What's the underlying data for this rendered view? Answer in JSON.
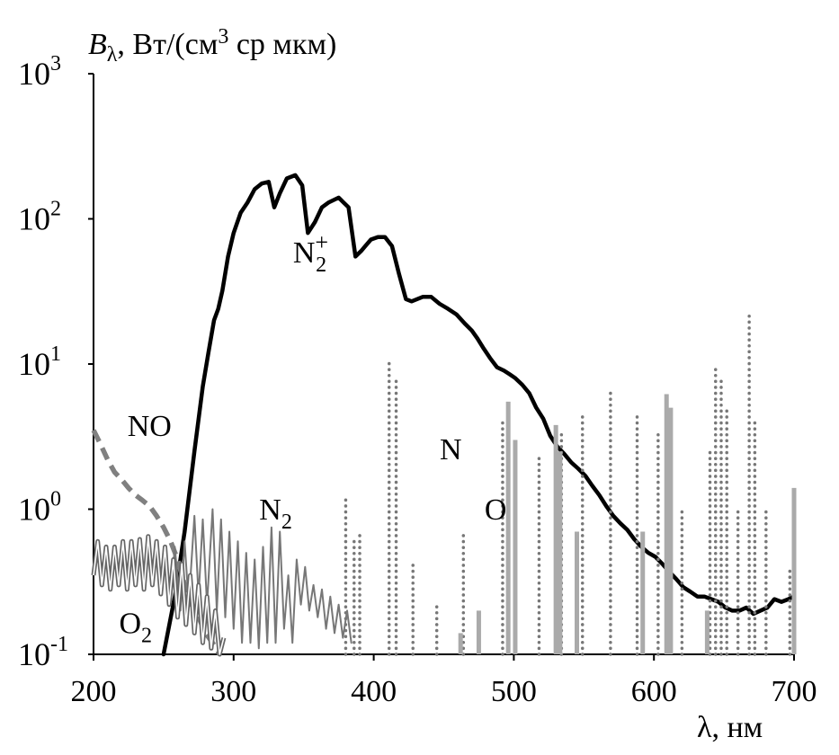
{
  "chart_data": {
    "type": "line",
    "title": "",
    "ylabel": {
      "symbol": "B",
      "subscript": "λ",
      "units_prefix": ", Вт/(см",
      "units_exp": "3",
      "units_suffix": " ср мкм)"
    },
    "xlabel": "λ, нм",
    "xlim": [
      200,
      700
    ],
    "ylim_log10": [
      -1,
      3
    ],
    "yscale": "log",
    "x_ticks": [
      "200",
      "300",
      "400",
      "500",
      "600",
      "700"
    ],
    "y_ticks": [
      {
        "base": "10",
        "exp": "3",
        "log10": 3
      },
      {
        "base": "10",
        "exp": "2",
        "log10": 2
      },
      {
        "base": "10",
        "exp": "1",
        "log10": 1
      },
      {
        "base": "10",
        "exp": "0",
        "log10": 0
      },
      {
        "base": "10",
        "exp": "-1",
        "log10": -1
      }
    ],
    "annotations": [
      {
        "text": "NO",
        "sub": "",
        "sup": "",
        "x": 240,
        "y": 3.2
      },
      {
        "text": "N",
        "sub": "2",
        "sup": "+",
        "x": 355,
        "y": 50
      },
      {
        "text": "N",
        "sub": "2",
        "sup": "",
        "x": 330,
        "y": 0.85
      },
      {
        "text": "N",
        "sub": "",
        "sup": "",
        "x": 455,
        "y": 2.2
      },
      {
        "text": "O",
        "sub": "",
        "sup": "",
        "x": 487,
        "y": 0.85
      },
      {
        "text": "O",
        "sub": "2",
        "sup": "",
        "x": 230,
        "y": 0.14
      }
    ],
    "series": [
      {
        "name": "N2+",
        "style": "solid-thick",
        "color": "#000000",
        "x": [
          250,
          258,
          265,
          272,
          278,
          282,
          286,
          289,
          292,
          296,
          300,
          305,
          310,
          315,
          320,
          325,
          329,
          333,
          338,
          344,
          349,
          353,
          358,
          363,
          368,
          375,
          382,
          387,
          391,
          394,
          398,
          403,
          408,
          413,
          418,
          423,
          427,
          431,
          435,
          441,
          447,
          453,
          459,
          465,
          470,
          474,
          478,
          483,
          488,
          493,
          497,
          501,
          506,
          511,
          516,
          521,
          526,
          531,
          536,
          541,
          546,
          551,
          556,
          561,
          566,
          571,
          576,
          581,
          586,
          591,
          596,
          601,
          606,
          611,
          616,
          621,
          626,
          631,
          636,
          641,
          646,
          651,
          656,
          661,
          666,
          671,
          676,
          681,
          686,
          691,
          696,
          700
        ],
        "y": [
          0.1,
          0.25,
          0.7,
          2.5,
          7,
          12,
          20,
          24,
          32,
          55,
          80,
          110,
          130,
          160,
          175,
          180,
          120,
          150,
          190,
          200,
          170,
          80,
          95,
          120,
          130,
          140,
          120,
          55,
          60,
          65,
          72,
          75,
          75,
          65,
          42,
          28,
          27,
          28,
          29,
          29,
          26,
          24,
          22,
          19,
          17,
          15,
          13,
          11,
          9.5,
          9.0,
          8.5,
          8.0,
          7.2,
          6.3,
          5.0,
          4.2,
          3.2,
          2.7,
          2.4,
          2.1,
          1.9,
          1.7,
          1.45,
          1.25,
          1.05,
          0.9,
          0.8,
          0.72,
          0.62,
          0.55,
          0.5,
          0.47,
          0.42,
          0.37,
          0.33,
          0.29,
          0.27,
          0.25,
          0.25,
          0.24,
          0.23,
          0.21,
          0.2,
          0.2,
          0.21,
          0.19,
          0.2,
          0.21,
          0.24,
          0.23,
          0.24,
          0.25
        ]
      },
      {
        "name": "NO",
        "style": "dashed-thick",
        "color": "#808080",
        "x": [
          200,
          205,
          210,
          215,
          220,
          225,
          230,
          235,
          240,
          245,
          250,
          255,
          260,
          265,
          270,
          275,
          280,
          285,
          290
        ],
        "y": [
          3.5,
          2.8,
          2.2,
          1.8,
          1.6,
          1.4,
          1.25,
          1.15,
          1.05,
          0.9,
          0.75,
          0.6,
          0.45,
          0.3,
          0.22,
          0.18,
          0.14,
          0.12,
          0.1
        ]
      },
      {
        "name": "N2",
        "style": "solid-thin",
        "color": "#777777",
        "x": [
          255,
          258,
          262,
          265,
          268,
          272,
          275,
          278,
          281,
          285,
          288,
          291,
          294,
          297,
          300,
          303,
          306,
          309,
          312,
          315,
          318,
          321,
          324,
          327,
          330,
          333,
          336,
          339,
          342,
          345,
          348,
          351,
          354,
          357,
          360,
          363,
          366,
          369,
          372,
          375,
          378,
          381,
          384
        ],
        "y": [
          0.25,
          0.55,
          0.2,
          0.6,
          0.22,
          0.9,
          0.25,
          0.85,
          0.22,
          1.0,
          0.2,
          0.85,
          0.18,
          0.7,
          0.15,
          0.6,
          0.12,
          0.5,
          0.12,
          0.45,
          0.11,
          0.55,
          0.12,
          0.75,
          0.12,
          0.7,
          0.15,
          0.35,
          0.12,
          0.45,
          0.22,
          0.4,
          0.2,
          0.3,
          0.18,
          0.28,
          0.15,
          0.25,
          0.14,
          0.22,
          0.13,
          0.2,
          0.12
        ]
      },
      {
        "name": "O2",
        "style": "solid-double",
        "color": "#666666",
        "x": [
          200,
          203,
          206,
          209,
          212,
          215,
          218,
          221,
          224,
          227,
          230,
          233,
          236,
          239,
          242,
          245,
          248,
          251,
          254,
          257,
          260,
          263,
          266,
          269,
          272,
          275,
          278,
          281,
          284,
          287,
          290,
          293
        ],
        "y": [
          0.35,
          0.6,
          0.3,
          0.55,
          0.28,
          0.55,
          0.3,
          0.6,
          0.28,
          0.6,
          0.3,
          0.62,
          0.28,
          0.65,
          0.3,
          0.6,
          0.26,
          0.55,
          0.22,
          0.45,
          0.18,
          0.42,
          0.16,
          0.35,
          0.14,
          0.3,
          0.12,
          0.25,
          0.11,
          0.2,
          0.1,
          0.13
        ]
      },
      {
        "name": "N",
        "style": "dotted-lines",
        "color": "#777777",
        "lines": [
          {
            "x": 380,
            "y": 1.2
          },
          {
            "x": 386,
            "y": 0.6
          },
          {
            "x": 390,
            "y": 0.7
          },
          {
            "x": 411,
            "y": 11
          },
          {
            "x": 416,
            "y": 8
          },
          {
            "x": 428,
            "y": 0.45
          },
          {
            "x": 445,
            "y": 0.22
          },
          {
            "x": 464,
            "y": 0.7
          },
          {
            "x": 492,
            "y": 4.2
          },
          {
            "x": 518,
            "y": 2.3
          },
          {
            "x": 534,
            "y": 3.5
          },
          {
            "x": 549,
            "y": 4.6
          },
          {
            "x": 569,
            "y": 6.8
          },
          {
            "x": 588,
            "y": 4.5
          },
          {
            "x": 603,
            "y": 3.5
          },
          {
            "x": 620,
            "y": 1.0
          },
          {
            "x": 640,
            "y": 2.5
          },
          {
            "x": 644,
            "y": 10
          },
          {
            "x": 648,
            "y": 8
          },
          {
            "x": 652,
            "y": 5
          },
          {
            "x": 660,
            "y": 1.0
          },
          {
            "x": 668,
            "y": 22
          },
          {
            "x": 672,
            "y": 4
          },
          {
            "x": 680,
            "y": 1.0
          },
          {
            "x": 697,
            "y": 0.4
          }
        ]
      },
      {
        "name": "O",
        "style": "solid-lines",
        "color": "#aaaaaa",
        "lines": [
          {
            "x": 462,
            "y": 0.14
          },
          {
            "x": 475,
            "y": 0.2
          },
          {
            "x": 496,
            "y": 5.5
          },
          {
            "x": 501,
            "y": 3.0
          },
          {
            "x": 530,
            "y": 3.8
          },
          {
            "x": 533,
            "y": 2.5
          },
          {
            "x": 545,
            "y": 0.7
          },
          {
            "x": 592,
            "y": 0.7
          },
          {
            "x": 609,
            "y": 6.2
          },
          {
            "x": 612,
            "y": 5.0
          },
          {
            "x": 638,
            "y": 0.2
          },
          {
            "x": 700,
            "y": 1.4
          }
        ]
      }
    ]
  }
}
